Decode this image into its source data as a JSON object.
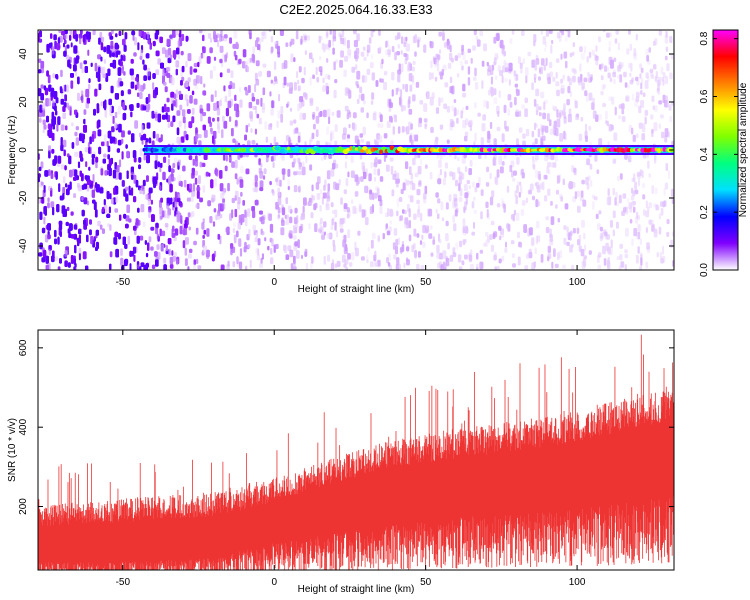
{
  "title": "C2E2.2025.064.16.33.E33",
  "chart_data": [
    {
      "type": "heatmap",
      "xlabel": "Height of straight line (km)",
      "ylabel": "Frequency (Hz)",
      "xlim": [
        -78,
        132
      ],
      "ylim": [
        -50,
        50
      ],
      "xticks": [
        "-50",
        "0",
        "50",
        "100"
      ],
      "yticks": [
        "40",
        "20",
        "0",
        "-20",
        "-40"
      ],
      "xtick_values": [
        -50,
        0,
        50,
        100
      ],
      "ytick_values": [
        40,
        20,
        0,
        -20,
        -40
      ],
      "colorbar": {
        "label": "Normalized spectral amplitude",
        "range": [
          0,
          0.83
        ],
        "ticks": [
          "0.0",
          "0.2",
          "0.4",
          "0.6",
          "0.8"
        ],
        "tick_values": [
          0.0,
          0.2,
          0.4,
          0.6,
          0.8
        ],
        "colormap": [
          "#ffffff",
          "#8000ff",
          "#0000ff",
          "#00e0ff",
          "#00ff80",
          "#80ff00",
          "#ffff00",
          "#ff8000",
          "#ff0000",
          "#ff00ff"
        ]
      },
      "ridge": {
        "frequency": 0,
        "x_start": -43,
        "x_end": 132,
        "profile": [
          {
            "x": -43,
            "amp": 0.2
          },
          {
            "x": -30,
            "amp": 0.3
          },
          {
            "x": -10,
            "amp": 0.45
          },
          {
            "x": 10,
            "amp": 0.42
          },
          {
            "x": 30,
            "amp": 0.55
          },
          {
            "x": 50,
            "amp": 0.7
          },
          {
            "x": 80,
            "amp": 0.75
          },
          {
            "x": 132,
            "amp": 0.72
          }
        ]
      },
      "noise_profile": [
        {
          "x": -78,
          "level": 0.12
        },
        {
          "x": -45,
          "level": 0.12
        },
        {
          "x": -25,
          "level": 0.06
        },
        {
          "x": 10,
          "level": 0.03
        },
        {
          "x": 132,
          "level": 0.02
        }
      ],
      "grid": false
    },
    {
      "type": "area",
      "xlabel": "Height of straight line (km)",
      "ylabel": "SNR (10 * v/v)",
      "xlim": [
        -78,
        132
      ],
      "ylim": [
        40,
        645
      ],
      "xticks": [
        "-50",
        "0",
        "50",
        "100"
      ],
      "yticks": [
        "600",
        "400",
        "200"
      ],
      "xtick_values": [
        -50,
        0,
        50,
        100
      ],
      "ytick_values": [
        600,
        400,
        200
      ],
      "color": "#ee3333",
      "envelope": {
        "x": [
          -78,
          -50,
          -20,
          0,
          20,
          40,
          60,
          80,
          100,
          120,
          132
        ],
        "upper_mean": [
          150,
          160,
          175,
          210,
          260,
          300,
          320,
          340,
          360,
          400,
          410
        ],
        "upper_peak": [
          300,
          330,
          360,
          390,
          450,
          500,
          540,
          560,
          590,
          640,
          645
        ],
        "lower": [
          50,
          50,
          60,
          90,
          110,
          130,
          145,
          150,
          160,
          180,
          190
        ]
      },
      "grid": false
    }
  ]
}
